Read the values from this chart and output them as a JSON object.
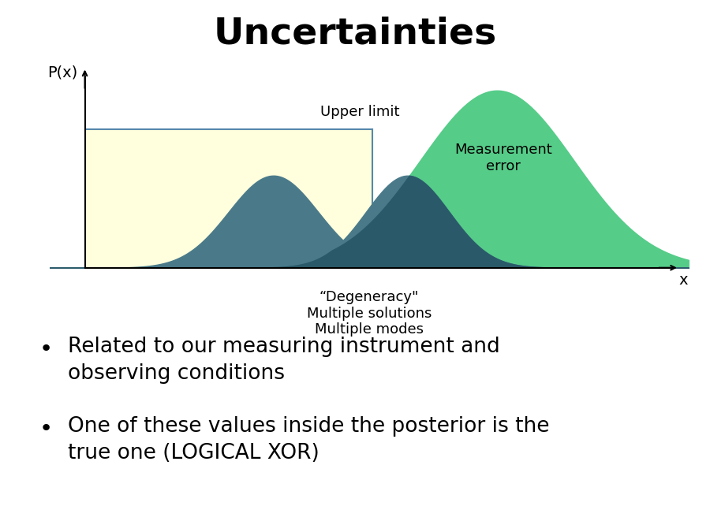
{
  "title": "Uncertainties",
  "title_fontsize": 34,
  "title_fontweight": "bold",
  "bg_color": "#ffffff",
  "ylabel": "P(x)",
  "xlabel": "x",
  "upper_limit_label": "Upper limit",
  "degeneracy_label": "“Degeneracy\"\nMultiple solutions\nMultiple modes",
  "measurement_label": "Measurement\nerror",
  "bullet1_line1": "Related to our measuring instrument and",
  "bullet1_line2": "observing conditions",
  "bullet2_line1": "One of these values inside the posterior is the",
  "bullet2_line2": "true one (LOGICAL XOR)",
  "rect_fill": "#ffffdd",
  "rect_edge": "#5588aa",
  "gauss_dark_fill": "#4a7a8a",
  "gauss_green_fill": "#55cc88",
  "gauss_overlap_fill": "#2a5a6a",
  "axis_color": "#000000",
  "bullet_fontsize": 19,
  "annot_fontsize": 13,
  "label_fontsize": 14,
  "degeneracy_fontsize": 13,
  "measurement_fontsize": 13
}
